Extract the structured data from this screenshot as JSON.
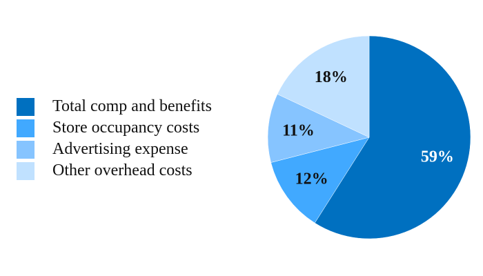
{
  "chart_data": {
    "type": "pie",
    "title": "",
    "categories": [
      "Total comp and benefits",
      "Store occupancy costs",
      "Advertising expense",
      "Other overhead costs"
    ],
    "values": [
      59,
      12,
      11,
      18
    ],
    "labels": [
      "59%",
      "12%",
      "11%",
      "18%"
    ],
    "colors": [
      "#0070c0",
      "#41a9ff",
      "#86c4ff",
      "#c0e1ff"
    ],
    "label_colors": [
      "#ffffff",
      "#111111",
      "#111111",
      "#111111"
    ],
    "legend_position": "left",
    "start": "top",
    "direction": "clockwise"
  }
}
